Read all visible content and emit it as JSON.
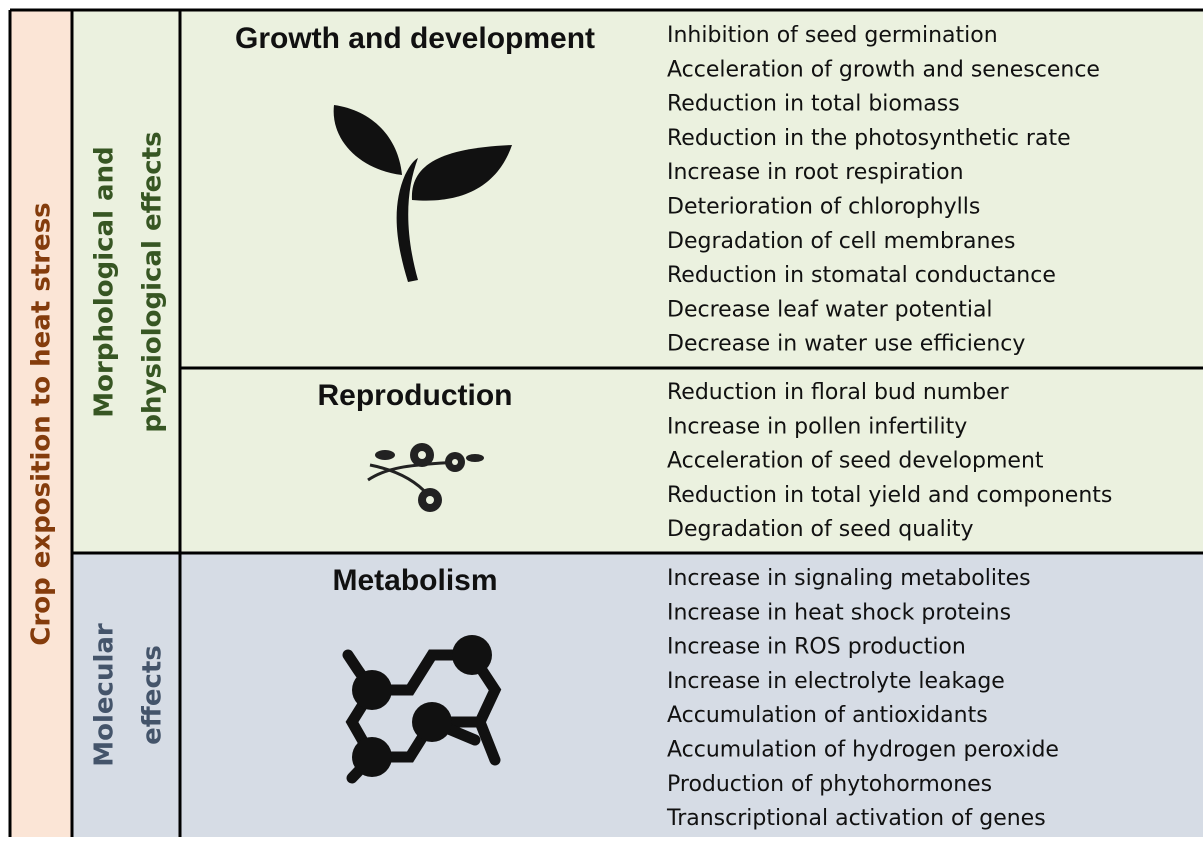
{
  "side_label": "Crop exposition to heat stress",
  "groups": [
    {
      "label_lines": [
        "Morphological and",
        "physiological effects"
      ]
    },
    {
      "label_lines": [
        "Molecular",
        "effects"
      ]
    }
  ],
  "sections": [
    {
      "title": "Growth and development",
      "items": [
        "Inhibition of seed germination",
        "Acceleration of growth and senescence",
        "Reduction in total biomass",
        "Reduction in the photosynthetic rate",
        "Increase in root respiration",
        "Deterioration of chlorophylls",
        "Degradation of cell membranes",
        "Reduction in stomatal conductance",
        "Decrease leaf water potential",
        "Decrease in water use efficiency"
      ]
    },
    {
      "title": "Reproduction",
      "items": [
        "Reduction in floral bud number",
        "Increase in pollen infertility",
        "Acceleration of seed development",
        "Reduction in total yield and components",
        "Degradation of seed quality"
      ]
    },
    {
      "title": "Metabolism",
      "items": [
        "Increase in signaling metabolites",
        "Increase in heat shock proteins",
        "Increase in ROS production",
        "Increase in electrolyte leakage",
        "Accumulation of antioxidants",
        "Accumulation of hydrogen peroxide",
        "Production of phytohormones",
        "Transcriptional activation of genes"
      ]
    }
  ]
}
